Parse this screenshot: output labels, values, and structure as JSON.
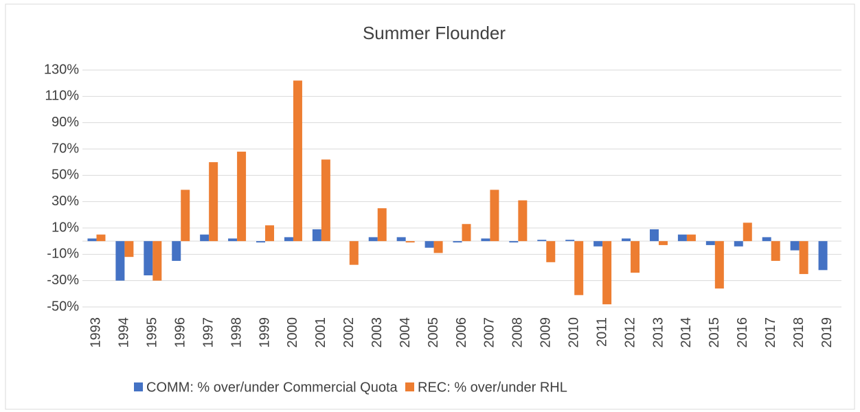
{
  "chart_data": {
    "type": "bar",
    "title": "Summer Flounder",
    "categories": [
      "1993",
      "1994",
      "1995",
      "1996",
      "1997",
      "1998",
      "1999",
      "2000",
      "2001",
      "2002",
      "2003",
      "2004",
      "2005",
      "2006",
      "2007",
      "2008",
      "2009",
      "2010",
      "2011",
      "2012",
      "2013",
      "2014",
      "2015",
      "2016",
      "2017",
      "2018",
      "2019"
    ],
    "series": [
      {
        "name": "COMM: % over/under Commercial Quota",
        "color": "#4472c4",
        "values": [
          2,
          -30,
          -26,
          -15,
          5,
          2,
          -1,
          3,
          9,
          0,
          3,
          3,
          -5,
          -1,
          2,
          -1,
          1,
          1,
          -4,
          2,
          9,
          5,
          -3,
          -4,
          3,
          -7,
          -22
        ]
      },
      {
        "name": "REC: % over/under RHL",
        "color": "#ed7d31",
        "values": [
          5,
          -12,
          -30,
          39,
          60,
          68,
          12,
          122,
          62,
          -18,
          25,
          -1,
          -9,
          13,
          39,
          31,
          -16,
          -41,
          -48,
          -24,
          -3,
          5,
          -36,
          14,
          -15,
          -25,
          null
        ]
      }
    ],
    "ylim": [
      -50,
      130
    ],
    "yticks": [
      {
        "value": -50,
        "label": "-50%"
      },
      {
        "value": -30,
        "label": "-30%"
      },
      {
        "value": -10,
        "label": "-10%"
      },
      {
        "value": 10,
        "label": "10%"
      },
      {
        "value": 30,
        "label": "30%"
      },
      {
        "value": 50,
        "label": "50%"
      },
      {
        "value": 70,
        "label": "70%"
      },
      {
        "value": 90,
        "label": "90%"
      },
      {
        "value": 110,
        "label": "110%"
      },
      {
        "value": 130,
        "label": "130%"
      }
    ],
    "grid": true,
    "legend": "bottom"
  }
}
